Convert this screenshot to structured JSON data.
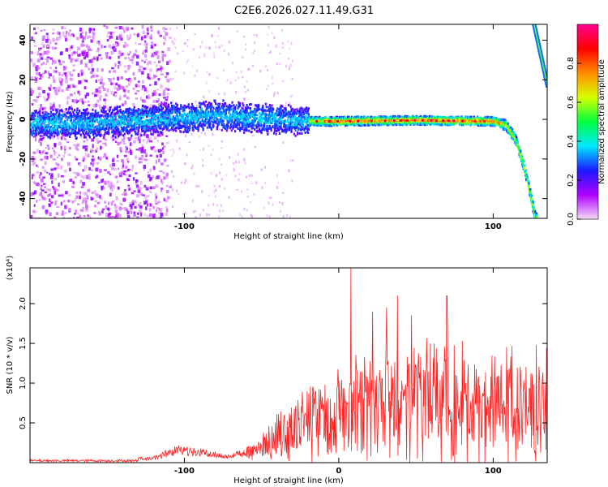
{
  "title": "C2E6.2026.027.11.49.G31",
  "chart_data": [
    {
      "type": "heatmap",
      "name": "spectrogram",
      "xlabel": "Height of straight line (km)",
      "ylabel": "Frequency (Hz)",
      "xlim": [
        -200,
        135
      ],
      "ylim": [
        -50,
        48
      ],
      "xticks": [
        -100,
        0,
        100
      ],
      "xtick_labels": [
        "-100",
        "",
        "100"
      ],
      "yticks": [
        -40,
        -20,
        0,
        20,
        40
      ],
      "ytick_labels": [
        "-40",
        "-20",
        "0",
        "20",
        "40"
      ],
      "colorbar": {
        "label": "Normalized spectral amplitude",
        "range": [
          0,
          1
        ],
        "ticks": [
          0.0,
          0.2,
          0.4,
          0.6,
          0.8
        ],
        "tick_labels": [
          "0.0",
          "0.2",
          "0.4",
          "0.6",
          "0.8"
        ],
        "colors": [
          "#f4dcf7",
          "#b000ff",
          "#1a1aff",
          "#00e8ff",
          "#00ff40",
          "#d8ff00",
          "#ff8c00",
          "#ff0000",
          "#ff0090"
        ]
      },
      "ridge_frequency_hz": [
        {
          "x": -200,
          "y": -2
        },
        {
          "x": -160,
          "y": -2
        },
        {
          "x": -120,
          "y": 0
        },
        {
          "x": -80,
          "y": 2
        },
        {
          "x": -40,
          "y": 0
        },
        {
          "x": -20,
          "y": -1
        },
        {
          "x": 0,
          "y": -1
        },
        {
          "x": 50,
          "y": -0.5
        },
        {
          "x": 100,
          "y": -1
        },
        {
          "x": 108,
          "y": -3
        },
        {
          "x": 114,
          "y": -10
        },
        {
          "x": 120,
          "y": -25
        },
        {
          "x": 127,
          "y": -50
        }
      ],
      "secondary_branch_hz": [
        {
          "x": 126,
          "y": 48
        },
        {
          "x": 135,
          "y": 16
        }
      ]
    },
    {
      "type": "line",
      "name": "snr",
      "xlabel": "Height of straight line (km)",
      "ylabel": "SNR (10 * v/v)",
      "y_multiplier": "(x10⁴)",
      "xlim": [
        -200,
        135
      ],
      "ylim": [
        0,
        2.45
      ],
      "xticks": [
        -100,
        0,
        100
      ],
      "xtick_labels": [
        "-100",
        "0",
        "100"
      ],
      "yticks": [
        0.5,
        1.0,
        1.5,
        2.0
      ],
      "ytick_labels": [
        "0.5",
        "1.0",
        "1.5",
        "2.0"
      ],
      "color": "#ff2020",
      "series": [
        {
          "name": "SNR",
          "envelope": [
            {
              "x": -200,
              "y": 0.03
            },
            {
              "x": -150,
              "y": 0.04
            },
            {
              "x": -120,
              "y": 0.08
            },
            {
              "x": -105,
              "y": 0.22
            },
            {
              "x": -90,
              "y": 0.18
            },
            {
              "x": -70,
              "y": 0.1
            },
            {
              "x": -55,
              "y": 0.25
            },
            {
              "x": -45,
              "y": 0.45
            },
            {
              "x": -30,
              "y": 0.75
            },
            {
              "x": -15,
              "y": 1.0
            },
            {
              "x": 0,
              "y": 1.15
            },
            {
              "x": 20,
              "y": 1.3
            },
            {
              "x": 40,
              "y": 1.4
            },
            {
              "x": 60,
              "y": 1.4
            },
            {
              "x": 80,
              "y": 1.35
            },
            {
              "x": 100,
              "y": 1.33
            },
            {
              "x": 135,
              "y": 1.35
            }
          ],
          "peaks": [
            {
              "x": 8,
              "y": 2.45
            },
            {
              "x": 38,
              "y": 2.1
            },
            {
              "x": 31,
              "y": 1.95
            },
            {
              "x": 70,
              "y": 2.1
            },
            {
              "x": 47,
              "y": 1.85
            },
            {
              "x": 22,
              "y": 1.9
            }
          ]
        }
      ]
    }
  ]
}
